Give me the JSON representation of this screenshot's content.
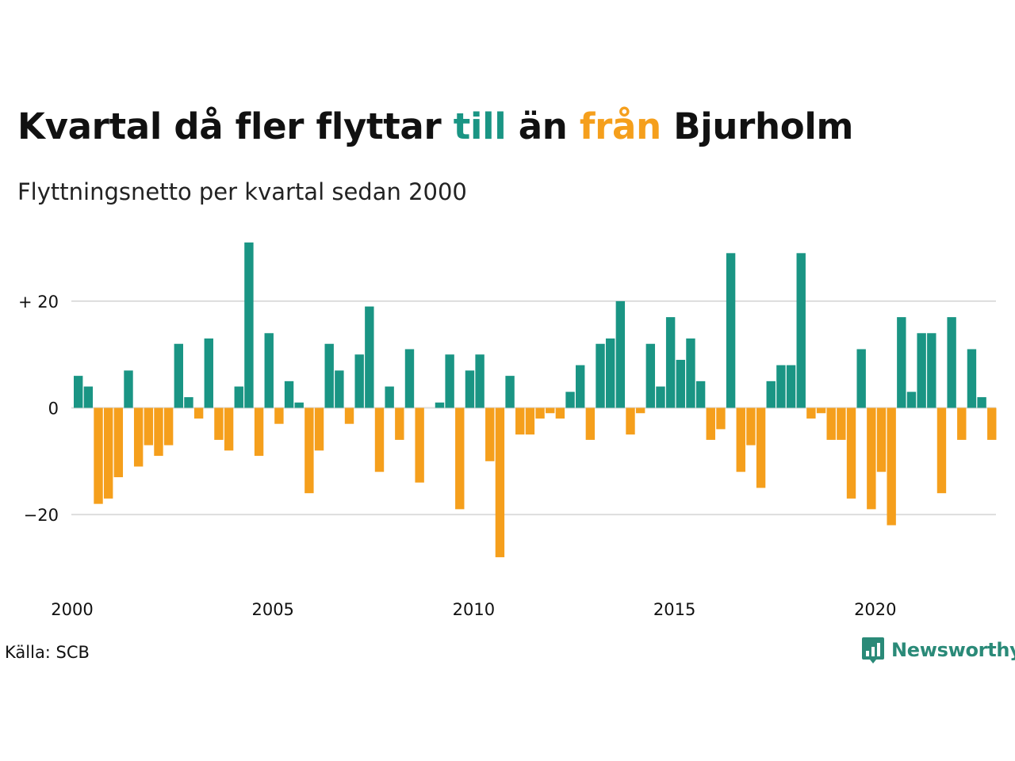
{
  "title": {
    "part1": "Kvartal då fler flyttar ",
    "till": "till",
    "part2": " än ",
    "fran": "från",
    "part3": " Bjurholm"
  },
  "subtitle": "Flyttningsnetto per kvartal sedan 2000",
  "source": "Källa: SCB",
  "brand": {
    "name": "Newsworthy",
    "icon": "newsworthy-logo-icon"
  },
  "colors": {
    "positive": "#1a9584",
    "negative": "#f59f1c",
    "grid": "#dddddd",
    "text": "#111111"
  },
  "chart_data": {
    "type": "bar",
    "x_start": "2000 Q1",
    "x_ticks": [
      "2000",
      "2005",
      "2010",
      "2015",
      "2020"
    ],
    "y_ticks": [
      "+ 20",
      "0",
      "−20"
    ],
    "y_tick_values": [
      20,
      0,
      -20
    ],
    "ylim": [
      -30,
      31
    ],
    "grid": true,
    "values": [
      6,
      4,
      -18,
      -17,
      -13,
      7,
      -11,
      -7,
      -9,
      -7,
      12,
      2,
      -2,
      13,
      -6,
      -8,
      4,
      31,
      -9,
      14,
      -3,
      5,
      1,
      -16,
      -8,
      12,
      7,
      -3,
      10,
      19,
      -12,
      4,
      -6,
      11,
      -14,
      0,
      1,
      10,
      -19,
      7,
      10,
      -10,
      -28,
      6,
      -5,
      -5,
      -2,
      -1,
      -2,
      3,
      8,
      -6,
      12,
      13,
      20,
      -5,
      -1,
      12,
      4,
      17,
      9,
      13,
      5,
      -6,
      -4,
      29,
      -12,
      -7,
      -15,
      5,
      8,
      8,
      29,
      -2,
      -1,
      -6,
      -6,
      -17,
      11,
      -19,
      -12,
      -22,
      17,
      3,
      14,
      14,
      -16,
      17,
      -6,
      11,
      2,
      -6
    ]
  }
}
